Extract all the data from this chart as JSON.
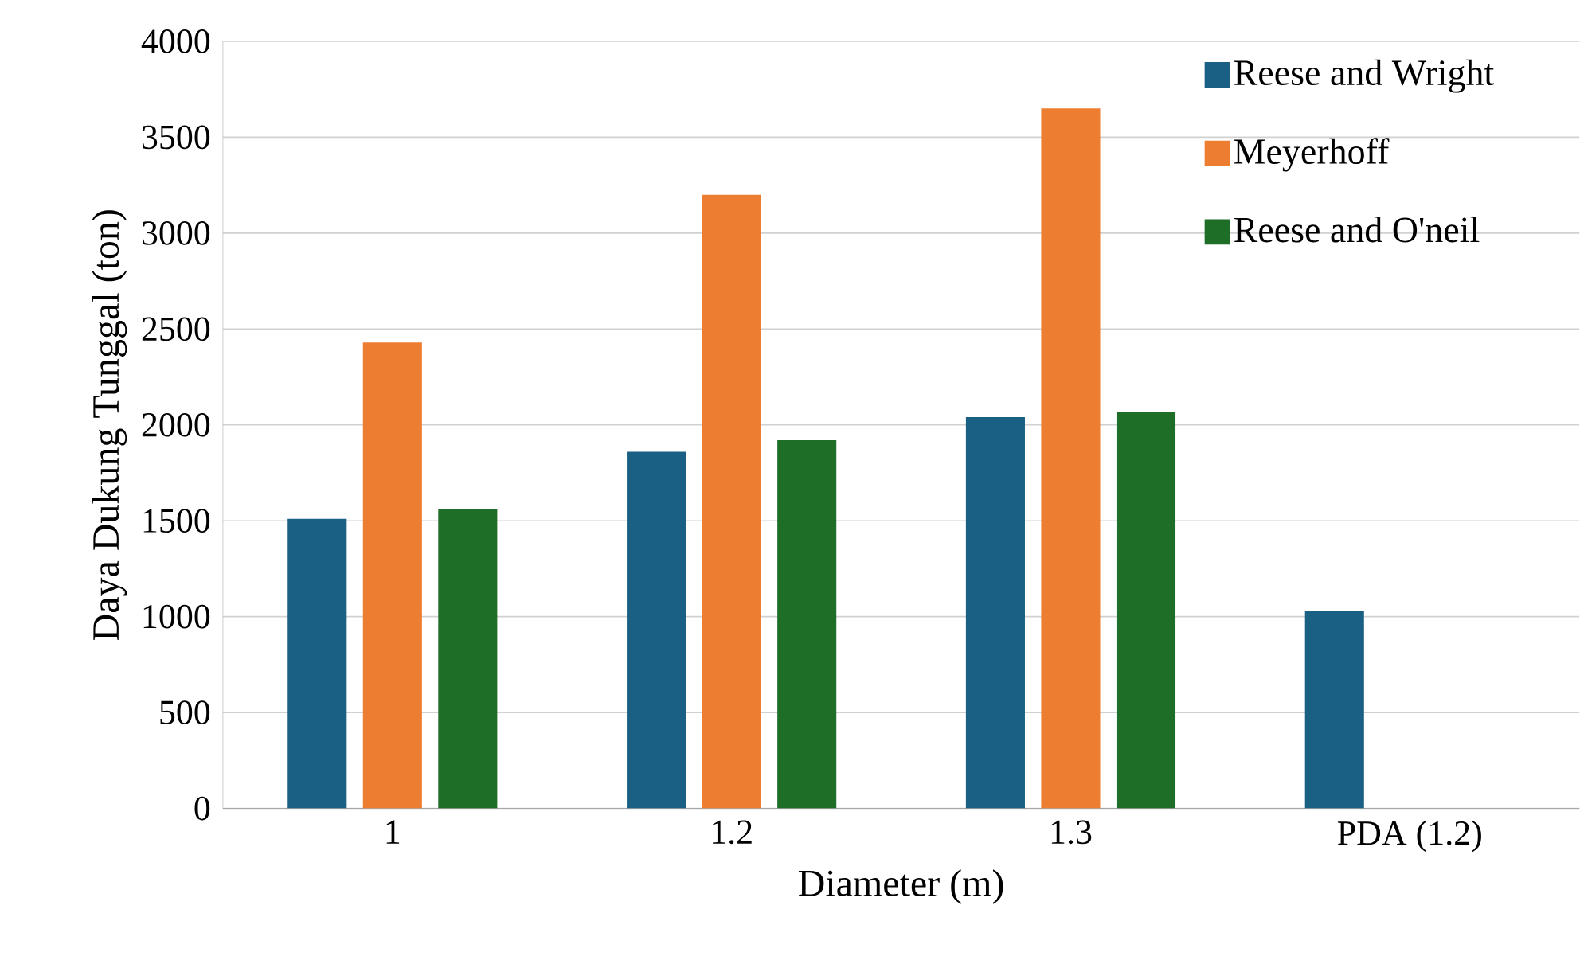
{
  "chart_data": {
    "type": "bar",
    "xlabel": "Diameter (m)",
    "ylabel": "Daya Dukung Tunggal  (ton)",
    "categories": [
      "1",
      "1.2",
      "1.3",
      "PDA (1.2)"
    ],
    "series": [
      {
        "name": "Reese and Wright",
        "color": "#1a5f84",
        "values": [
          1510,
          1860,
          2040,
          1030
        ]
      },
      {
        "name": "Meyerhoff",
        "color": "#ed7d31",
        "values": [
          2430,
          3200,
          3650,
          null
        ]
      },
      {
        "name": "Reese and O'neil",
        "color": "#1e6e28",
        "values": [
          1560,
          1920,
          2070,
          null
        ]
      }
    ],
    "ylim": [
      0,
      4000
    ],
    "yticks": [
      0,
      500,
      1000,
      1500,
      2000,
      2500,
      3000,
      3500,
      4000
    ],
    "grid": "y",
    "legend": "top right"
  }
}
